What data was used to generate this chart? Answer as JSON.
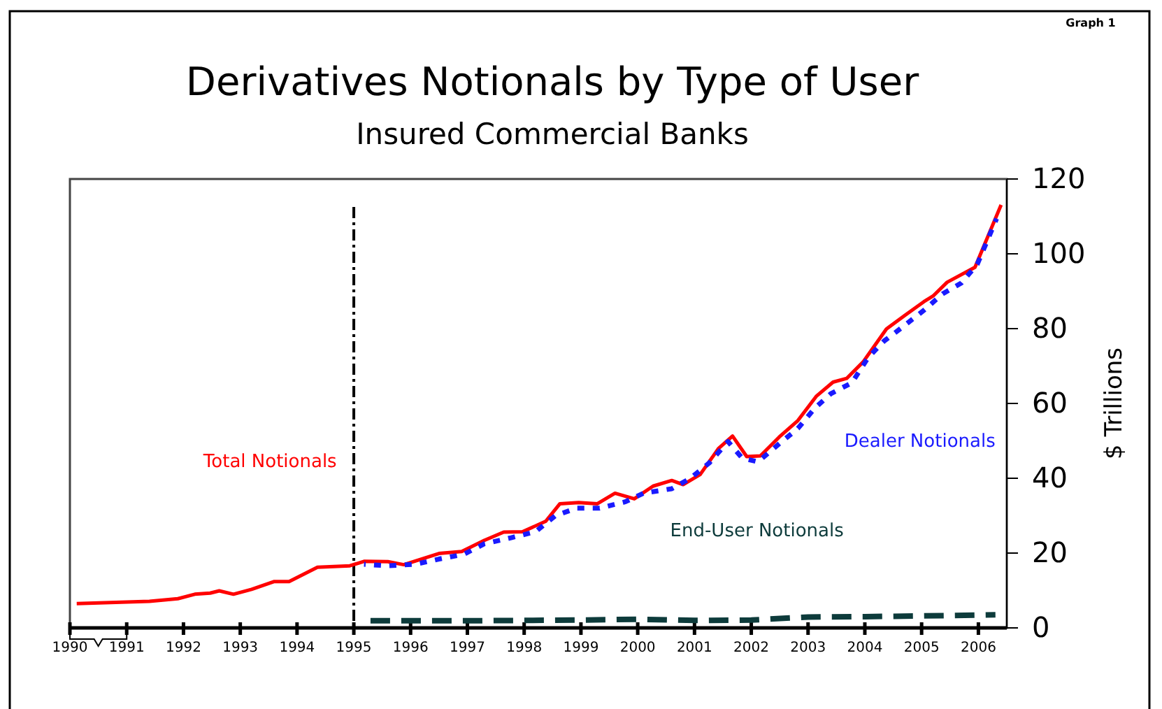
{
  "chart_data": {
    "type": "line",
    "title": "Derivatives Notionals by Type of User",
    "subtitle": "Insured Commercial Banks",
    "ylabel": "$ Trillions",
    "annotations": [
      "Graph 1"
    ],
    "xlim": [
      1990,
      2006.5
    ],
    "xticks": [
      1990,
      1991,
      1992,
      1993,
      1994,
      1995,
      1996,
      1997,
      1998,
      1999,
      2000,
      2001,
      2002,
      2003,
      2004,
      2005,
      2006
    ],
    "ylim": [
      0,
      120
    ],
    "yticks": [
      0,
      20,
      40,
      60,
      80,
      100,
      120
    ],
    "grid": false,
    "legend": false,
    "ref_lines": [
      {
        "axis": "x",
        "value": 1995,
        "color": "#000000",
        "line_style": "dashed"
      }
    ],
    "series": [
      {
        "name": "Total Notionals",
        "color": "#ff0000",
        "line_style": "solid",
        "x": [
          1990.12,
          1991.4,
          1991.9,
          1992.2,
          1992.47,
          1992.63,
          1992.88,
          1993.2,
          1993.6,
          1993.86,
          1994.36,
          1994.93,
          1995.18,
          1995.6,
          1995.88,
          1996.5,
          1996.9,
          1997.3,
          1997.64,
          1997.97,
          1998.38,
          1998.63,
          1998.96,
          1999.29,
          1999.6,
          1999.94,
          2000.27,
          2000.6,
          2000.8,
          2001.1,
          2001.42,
          2001.67,
          2001.92,
          2002.16,
          2002.49,
          2002.82,
          2003.15,
          2003.44,
          2003.68,
          2003.97,
          2004.38,
          2004.71,
          2005.04,
          2005.2,
          2005.45,
          2005.94,
          2006.4
        ],
        "values": [
          6.5,
          7.1,
          7.8,
          9.0,
          9.3,
          9.9,
          9.0,
          10.3,
          12.4,
          12.4,
          16.2,
          16.6,
          17.8,
          17.7,
          16.9,
          19.9,
          20.4,
          23.4,
          25.6,
          25.7,
          28.5,
          33.2,
          33.5,
          33.2,
          36.0,
          34.5,
          37.9,
          39.4,
          38.3,
          41.0,
          47.9,
          51.3,
          45.8,
          46.0,
          51.0,
          55.4,
          62.0,
          65.7,
          66.7,
          71.1,
          79.9,
          83.6,
          87.2,
          88.7,
          92.4,
          96.4,
          113.1
        ]
      },
      {
        "name": "Dealer Notionals",
        "color": "#1a1aff",
        "line_style": "dotted",
        "x": [
          1995.18,
          1995.6,
          1996.08,
          1996.5,
          1996.94,
          1997.3,
          1997.77,
          1998.2,
          1998.55,
          1998.92,
          1999.33,
          1999.78,
          2000.1,
          2000.6,
          2000.93,
          2001.26,
          2001.59,
          2001.84,
          2002.12,
          2002.49,
          2002.82,
          2003.11,
          2003.4,
          2003.77,
          2004.06,
          2004.34,
          2004.67,
          2005.04,
          2005.37,
          2005.7,
          2005.98,
          2006.32
        ],
        "values": [
          17.0,
          16.6,
          17.0,
          18.4,
          19.7,
          22.5,
          24.1,
          25.7,
          30.0,
          32.0,
          32.0,
          33.7,
          36.0,
          37.2,
          40.0,
          44.1,
          49.8,
          45.4,
          44.4,
          49.2,
          53.3,
          58.6,
          62.6,
          65.5,
          72.3,
          76.7,
          80.5,
          84.9,
          89.3,
          92.2,
          97.2,
          109.4
        ]
      },
      {
        "name": "End-User Notionals",
        "color": "#0d3b3b",
        "line_style": "dashed",
        "x": [
          1995.1,
          1996,
          1997,
          1998,
          1999,
          2000,
          2001,
          2002,
          2003,
          2004,
          2005,
          2006.3
        ],
        "values": [
          1.9,
          1.9,
          1.9,
          2.0,
          2.1,
          2.3,
          2.0,
          2.1,
          2.9,
          3.0,
          3.2,
          3.5
        ]
      }
    ]
  }
}
